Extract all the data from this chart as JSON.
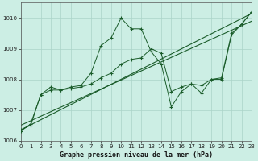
{
  "title": "Graphe pression niveau de la mer (hPa)",
  "bg_color": "#cceee4",
  "grid_color": "#aad4c8",
  "line_color": "#1a5c2a",
  "x_min": 0,
  "x_max": 23,
  "y_min": 1006,
  "y_max": 1010.5,
  "x_ticks": [
    0,
    1,
    2,
    3,
    4,
    5,
    6,
    7,
    8,
    9,
    10,
    11,
    12,
    13,
    14,
    15,
    16,
    17,
    18,
    19,
    20,
    21,
    22,
    23
  ],
  "y_ticks": [
    1006,
    1007,
    1008,
    1009,
    1010
  ],
  "s1_y": [
    1006.3,
    1006.55,
    1007.5,
    1007.75,
    1007.65,
    1007.75,
    1007.8,
    1008.2,
    1009.1,
    1009.35,
    1010.0,
    1009.65,
    1009.65,
    1008.9,
    1008.5,
    1007.1,
    1007.6,
    1007.85,
    1007.55,
    1008.0,
    1008.0,
    1009.45,
    1009.8,
    1010.2
  ],
  "s2_y": [
    1006.35,
    1006.5,
    1007.5,
    1007.65,
    1007.65,
    1007.7,
    1007.75,
    1007.85,
    1008.05,
    1008.2,
    1008.5,
    1008.65,
    1008.7,
    1009.0,
    1008.85,
    1007.6,
    1007.75,
    1007.85,
    1007.8,
    1008.0,
    1008.05,
    1009.5,
    1009.8,
    1010.2
  ],
  "trend1": [
    1006.35,
    1010.15
  ],
  "trend2": [
    1006.5,
    1009.9
  ]
}
